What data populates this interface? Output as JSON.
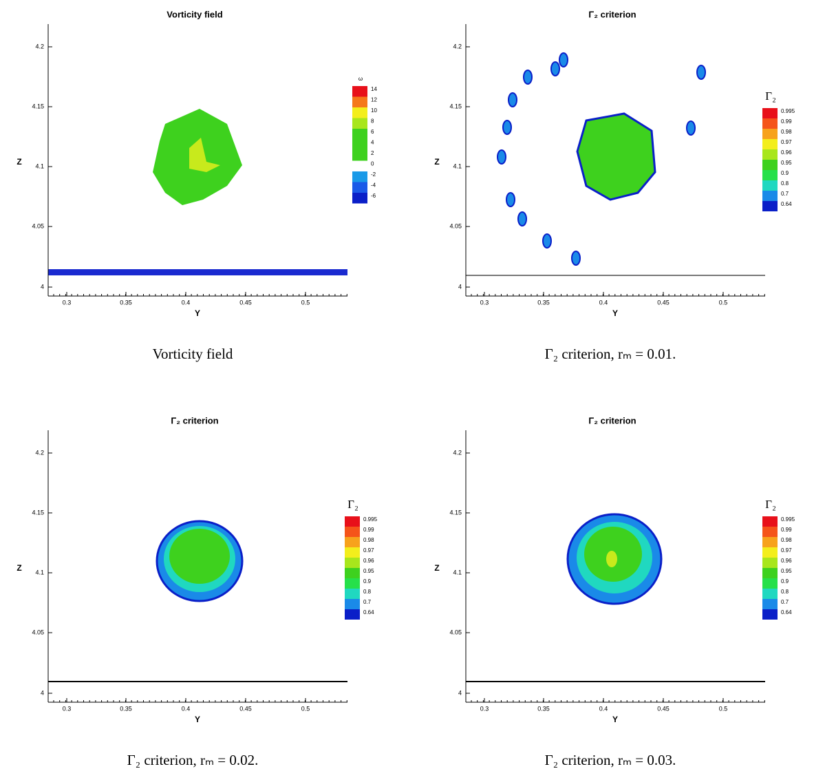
{
  "panels": [
    {
      "title": "Vorticity field",
      "caption": "Vorticity field",
      "x_label": "Y",
      "y_label": "Z",
      "xticks": [
        "0.3",
        "0.35",
        "0.4",
        "0.45",
        "0.5"
      ],
      "yticks": [
        "4.2",
        "4.15",
        "4.1",
        "4.05",
        "4"
      ],
      "legend": {
        "title": "ω",
        "labels": [
          "14",
          "12",
          "10",
          "8",
          "6",
          "4",
          "2",
          "0",
          "-2",
          "-4",
          "-6"
        ]
      }
    },
    {
      "title": "Γ₂ criterion",
      "caption": "Γ₂ criterion, rₘ = 0.01.",
      "x_label": "Y",
      "y_label": "Z",
      "xticks": [
        "0.3",
        "0.35",
        "0.4",
        "0.45",
        "0.5"
      ],
      "yticks": [
        "4.2",
        "4.15",
        "4.1",
        "4.05",
        "4"
      ],
      "legend": {
        "title": "Γ₂",
        "labels": [
          "0.995",
          "0.99",
          "0.98",
          "0.97",
          "0.96",
          "0.95",
          "0.9",
          "0.8",
          "0.7",
          "0.64"
        ]
      }
    },
    {
      "title": "Γ₂ criterion",
      "caption": "Γ₂ criterion, rₘ = 0.02.",
      "x_label": "Y",
      "y_label": "Z",
      "xticks": [
        "0.3",
        "0.35",
        "0.4",
        "0.45",
        "0.5"
      ],
      "yticks": [
        "4.2",
        "4.15",
        "4.1",
        "4.05",
        "4"
      ],
      "legend": {
        "title": "Γ₂",
        "labels": [
          "0.995",
          "0.99",
          "0.98",
          "0.97",
          "0.96",
          "0.95",
          "0.9",
          "0.8",
          "0.7",
          "0.64"
        ]
      }
    },
    {
      "title": "Γ₂ criterion",
      "caption": "Γ₂ criterion, rₘ = 0.03.",
      "x_label": "Y",
      "y_label": "Z",
      "xticks": [
        "0.3",
        "0.35",
        "0.4",
        "0.45",
        "0.5"
      ],
      "yticks": [
        "4.2",
        "4.15",
        "4.1",
        "4.05",
        "4"
      ],
      "legend": {
        "title": "Γ₂",
        "labels": [
          "0.995",
          "0.99",
          "0.98",
          "0.97",
          "0.96",
          "0.95",
          "0.9",
          "0.8",
          "0.7",
          "0.64"
        ]
      }
    }
  ]
}
